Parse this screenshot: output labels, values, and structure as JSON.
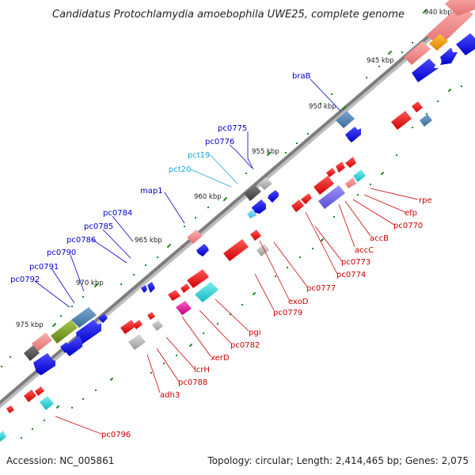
{
  "title": "Candidatus Protochlamydia amoebophila UWE25, complete genome",
  "footer": {
    "accession": "Accession: NC_005861",
    "summary": "Topology: circular; Length: 2,414,465 bp; Genes: 2,075"
  },
  "ticks": [
    "940 kbp",
    "945 kbp",
    "950 kbp",
    "955 kbp",
    "960 kbp",
    "965 kbp",
    "970 kbp",
    "975 kbp"
  ],
  "colors": {
    "backbone": "#8a8a8a",
    "forward_label": "#0000cc",
    "reverse_label": "#cc0000",
    "rna_label": "#1aa7d6",
    "tick_dot": "#1e8c1e"
  },
  "labels_forward": [
    "braB",
    "pc0775",
    "pc0776",
    "pct19",
    "pct20",
    "map1",
    "pc0784",
    "pc0785",
    "pc0786",
    "pc0790",
    "pc0791",
    "pc0792"
  ],
  "labels_reverse": [
    "rpe",
    "efp",
    "pc0770",
    "accB",
    "accC",
    "pc0773",
    "pc0774",
    "pc0777",
    "exoD",
    "pc0779",
    "pgi",
    "pc0782",
    "xerD",
    "lcrH",
    "pc0788",
    "adh3",
    "pc0796"
  ]
}
